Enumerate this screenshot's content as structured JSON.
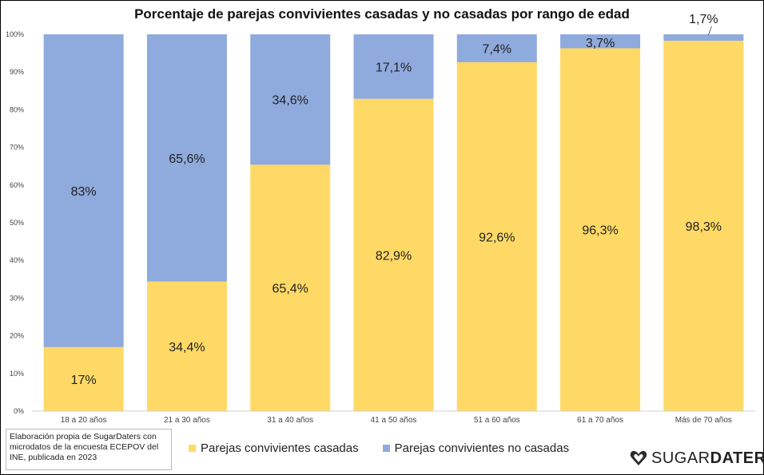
{
  "chart_data": {
    "type": "bar",
    "stacked": true,
    "title": "Porcentaje de parejas convivientes casadas y no casadas por rango de edad",
    "categories": [
      "18 a 20 años",
      "21 a 30 años",
      "31 a 40 años",
      "41 a 50 años",
      "51 a 60 años",
      "61 a 70 años",
      "Más de 70 años"
    ],
    "ylim": [
      0,
      100
    ],
    "yticks": [
      "0%",
      "10%",
      "20%",
      "30%",
      "40%",
      "50%",
      "60%",
      "70%",
      "80%",
      "90%",
      "100%"
    ],
    "series": [
      {
        "name": "Parejas convivientes casadas",
        "color": "#FFD966",
        "values": [
          17,
          34.4,
          65.4,
          82.9,
          92.6,
          96.3,
          98.3
        ],
        "labels": [
          "17%",
          "34,4%",
          "65,4%",
          "82,9%",
          "92,6%",
          "96,3%",
          "98,3%"
        ]
      },
      {
        "name": "Parejas convivientes no casadas",
        "color": "#8FAADC",
        "values": [
          83,
          65.6,
          34.6,
          17.1,
          7.4,
          3.7,
          1.7
        ],
        "labels": [
          "83%",
          "65,6%",
          "34,6%",
          "17,1%",
          "7,4%",
          "3,7%",
          "1,7%"
        ]
      }
    ],
    "legend_position": "bottom",
    "grid": false
  },
  "source_note": "Elaboración propia de SugarDaters con microdatos de la encuesta ECEPOV del INE, publicada en 2023",
  "brand": {
    "part1": "SUGAR",
    "part2": "DATERS",
    "logo_icon": "heart-icon"
  }
}
